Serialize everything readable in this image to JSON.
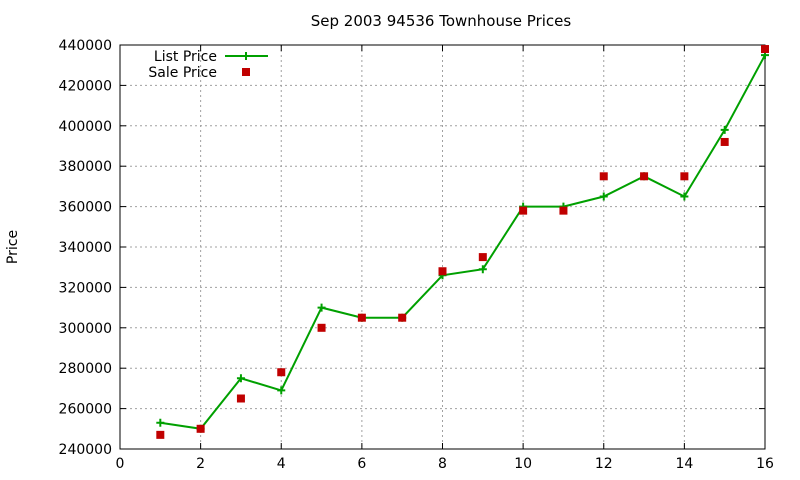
{
  "chart_data": {
    "type": "line",
    "title": "Sep 2003 94536 Townhouse Prices",
    "xlabel": "",
    "ylabel": "Price",
    "xlim": [
      0,
      16
    ],
    "ylim": [
      240000,
      440000
    ],
    "xticks": [
      0,
      2,
      4,
      6,
      8,
      10,
      12,
      14,
      16
    ],
    "yticks": [
      240000,
      260000,
      280000,
      300000,
      320000,
      340000,
      360000,
      380000,
      400000,
      420000,
      440000
    ],
    "grid": true,
    "legend_position": "top-left",
    "series": [
      {
        "name": "List Price",
        "style": "line+plus",
        "color": "#00a000",
        "x": [
          1,
          2,
          3,
          4,
          5,
          6,
          7,
          8,
          9,
          10,
          11,
          12,
          13,
          14,
          15,
          16
        ],
        "y": [
          253000,
          250000,
          275000,
          269000,
          310000,
          305000,
          305000,
          326000,
          329000,
          360000,
          360000,
          365000,
          375000,
          365000,
          398000,
          435000
        ]
      },
      {
        "name": "Sale Price",
        "style": "square",
        "color": "#c00000",
        "x": [
          1,
          2,
          3,
          4,
          5,
          6,
          7,
          8,
          9,
          10,
          11,
          12,
          13,
          14,
          15,
          16
        ],
        "y": [
          247000,
          250000,
          265000,
          278000,
          300000,
          305000,
          305000,
          328000,
          335000,
          358000,
          358000,
          375000,
          375000,
          375000,
          392000,
          438000
        ]
      }
    ]
  }
}
